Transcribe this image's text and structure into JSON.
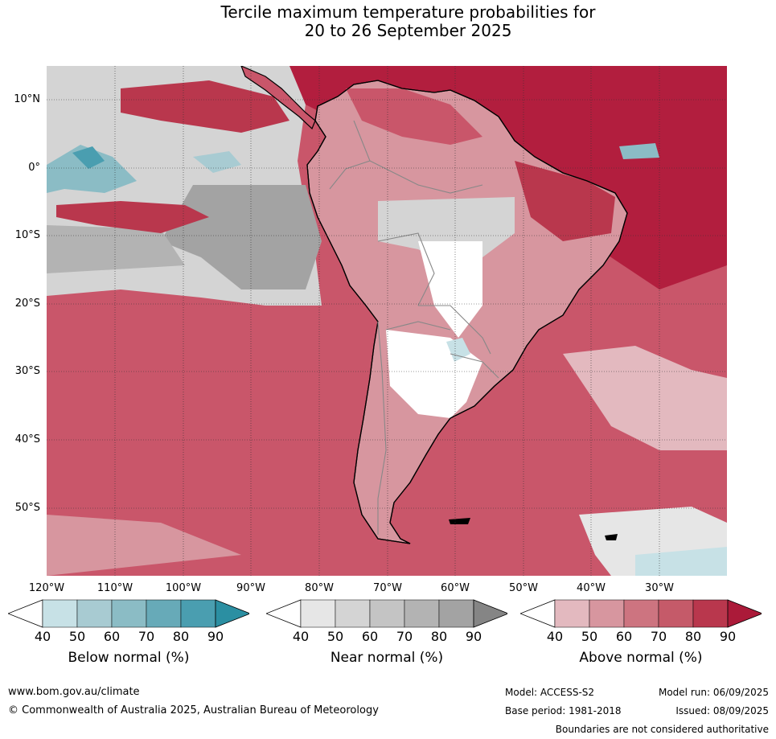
{
  "title": {
    "line1": "Tercile maximum temperature probabilities for",
    "line2": "20 to 26 September 2025"
  },
  "map": {
    "region": "South America",
    "lat_labels": [
      "10°N",
      "0°",
      "10°S",
      "20°S",
      "30°S",
      "40°S",
      "50°S"
    ],
    "lon_labels": [
      "120°W",
      "110°W",
      "100°W",
      "90°W",
      "80°W",
      "70°W",
      "60°W",
      "50°W",
      "40°W",
      "30°W"
    ],
    "colors": {
      "ocean_above": "#c9566a",
      "strong_above": "#b21e3e",
      "near_normal": "#b9b9b9",
      "below_normal": "#6eaebb",
      "land_neutral": "#ffffff",
      "coast": "#000000",
      "borders": "#888888"
    }
  },
  "legends": [
    {
      "title": "Below normal (%)",
      "ticks": [
        "40",
        "50",
        "60",
        "70",
        "80",
        "90"
      ],
      "colors": [
        "#ffffff",
        "#c7e1e6",
        "#a8cbd2",
        "#8bbcc5",
        "#67aab8",
        "#4a9eb0",
        "#2b8fa2"
      ]
    },
    {
      "title": "Near normal (%)",
      "ticks": [
        "40",
        "50",
        "60",
        "70",
        "80",
        "90"
      ],
      "colors": [
        "#ffffff",
        "#e6e6e6",
        "#d4d4d4",
        "#c4c4c4",
        "#b3b3b3",
        "#a3a3a3",
        "#858585"
      ]
    },
    {
      "title": "Above normal (%)",
      "ticks": [
        "40",
        "50",
        "60",
        "70",
        "80",
        "90"
      ],
      "colors": [
        "#ffffff",
        "#e3b9bf",
        "#d7969f",
        "#cd7480",
        "#c55a69",
        "#b9374d",
        "#ab1a39"
      ]
    }
  ],
  "footer": {
    "website": "www.bom.gov.au/climate",
    "copyright": "© Commonwealth of Australia 2025, Australian Bureau of Meteorology",
    "model": "Model: ACCESS-S2",
    "base_period": "Base period: 1981-2018",
    "model_run": "Model run: 06/09/2025",
    "issued": "Issued: 08/09/2025",
    "disclaimer": "Boundaries are not considered authoritative"
  }
}
